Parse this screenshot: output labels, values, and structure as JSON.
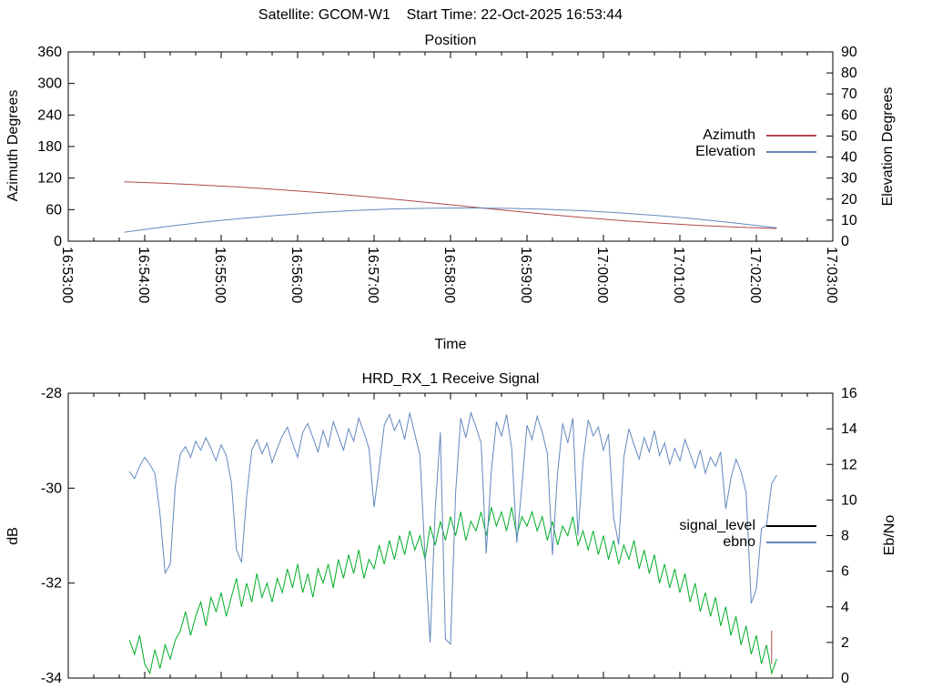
{
  "header": {
    "title": "Satellite: GCOM-W1    Start Time: 22-Oct-2025 16:53:44"
  },
  "colors": {
    "azimuth_red": "#b2484a",
    "elevation_blue": "#6289bd",
    "signal_green": "#00ad26",
    "legend_black": "#000000",
    "axis_black": "#000000",
    "background": "#ffffff"
  },
  "chart_data": [
    {
      "type": "line",
      "title": "Position",
      "xlabel": "Time",
      "x_axis": {
        "tick_labels": [
          "16:53:00",
          "16:54:00",
          "16:55:00",
          "16:56:00",
          "16:57:00",
          "16:58:00",
          "16:59:00",
          "17:00:00",
          "17:01:00",
          "17:02:00",
          "17:03:00"
        ],
        "range_seconds": [
          0,
          600
        ],
        "minor_tick_seconds": 20
      },
      "y_left": {
        "label": "Azimuth Degrees",
        "min": 0,
        "max": 360,
        "step": 60
      },
      "y_right": {
        "label": "Elevation Degrees",
        "min": 0,
        "max": 90,
        "step": 10
      },
      "legend": {
        "position": "inside-top-right",
        "entries": [
          {
            "label": "Azimuth",
            "color": "#b2484a"
          },
          {
            "label": "Elevation",
            "color": "#6289bd"
          }
        ]
      },
      "series": [
        {
          "name": "Azimuth",
          "axis": "left",
          "color": "#b2484a",
          "t": [
            44,
            74,
            104,
            134,
            164,
            194,
            224,
            254,
            284,
            314,
            344,
            374,
            404,
            434,
            464,
            494,
            524,
            556
          ],
          "values": [
            112.8,
            110.2,
            106.8,
            102.9,
            98.3,
            93.0,
            87.0,
            80.3,
            73.2,
            65.8,
            58.4,
            51.4,
            45.0,
            39.2,
            34.4,
            30.2,
            26.9,
            24.1
          ]
        },
        {
          "name": "Elevation",
          "axis": "right",
          "color": "#6289bd",
          "t": [
            44,
            74,
            104,
            134,
            164,
            194,
            224,
            254,
            284,
            314,
            344,
            374,
            404,
            434,
            464,
            494,
            524,
            556
          ],
          "values": [
            4.3,
            6.7,
            8.9,
            10.7,
            12.3,
            13.6,
            14.6,
            15.3,
            15.7,
            15.8,
            15.6,
            15.2,
            14.5,
            13.4,
            12.1,
            10.5,
            8.6,
            6.3
          ]
        }
      ]
    },
    {
      "type": "line",
      "title": "HRD_RX_1 Receive Signal",
      "xlabel": "",
      "x_axis": {
        "tick_labels": [],
        "range_seconds": [
          0,
          600
        ],
        "minor_tick_seconds": 20
      },
      "y_left": {
        "label": "dB",
        "min": -34,
        "max": -28,
        "step": 2
      },
      "y_right": {
        "label": "Eb/No",
        "min": 0,
        "max": 16,
        "step": 2
      },
      "legend": {
        "position": "inside-right",
        "entries": [
          {
            "label": "signal_level",
            "color": "#000000"
          },
          {
            "label": "ebno",
            "color": "#6289bd"
          }
        ]
      },
      "series": [
        {
          "name": "signal_level",
          "axis": "left",
          "color": "#00ad26",
          "t0": 48,
          "dt": 4,
          "values": [
            -33.2,
            -33.5,
            -33.1,
            -33.7,
            -33.9,
            -33.4,
            -33.8,
            -33.3,
            -33.6,
            -33.2,
            -33.0,
            -32.6,
            -33.1,
            -32.7,
            -32.4,
            -32.9,
            -32.3,
            -32.6,
            -32.2,
            -32.7,
            -32.3,
            -31.9,
            -32.5,
            -32.0,
            -32.4,
            -31.8,
            -32.3,
            -32.0,
            -32.4,
            -31.9,
            -32.2,
            -31.7,
            -32.1,
            -31.6,
            -32.2,
            -31.8,
            -32.3,
            -31.7,
            -32.0,
            -31.6,
            -32.1,
            -31.5,
            -31.9,
            -31.4,
            -31.8,
            -31.3,
            -31.9,
            -31.5,
            -31.7,
            -31.2,
            -31.6,
            -31.1,
            -31.5,
            -31.0,
            -31.4,
            -30.9,
            -31.3,
            -31.0,
            -31.5,
            -30.8,
            -31.2,
            -30.7,
            -31.1,
            -30.6,
            -31.0,
            -30.5,
            -31.1,
            -30.7,
            -30.9,
            -30.5,
            -31.0,
            -30.4,
            -30.8,
            -30.5,
            -30.9,
            -30.4,
            -31.0,
            -30.6,
            -30.8,
            -30.5,
            -30.9,
            -30.6,
            -31.1,
            -30.7,
            -31.2,
            -30.8,
            -31.0,
            -30.6,
            -31.2,
            -30.9,
            -31.3,
            -30.9,
            -31.4,
            -31.0,
            -31.5,
            -31.1,
            -31.6,
            -31.2,
            -31.5,
            -31.1,
            -31.7,
            -31.3,
            -31.8,
            -31.4,
            -32.0,
            -31.6,
            -32.1,
            -31.7,
            -32.2,
            -31.8,
            -32.4,
            -32.0,
            -32.6,
            -32.2,
            -32.7,
            -32.3,
            -32.9,
            -32.5,
            -33.1,
            -32.7,
            -33.3,
            -32.9,
            -33.5,
            -33.1,
            -33.7,
            -33.3,
            -33.9,
            -33.6
          ]
        },
        {
          "name": "ebno",
          "axis": "right",
          "color": "#6289bd",
          "t0": 48,
          "dt": 4,
          "values": [
            11.6,
            11.2,
            11.9,
            12.4,
            12.0,
            11.5,
            9.2,
            5.9,
            6.4,
            10.8,
            12.6,
            13.0,
            12.4,
            13.3,
            12.8,
            13.5,
            12.9,
            12.2,
            13.1,
            12.5,
            11.0,
            7.2,
            6.5,
            10.2,
            12.8,
            13.4,
            12.6,
            13.2,
            12.1,
            12.9,
            13.6,
            14.1,
            13.2,
            12.4,
            13.8,
            14.3,
            13.5,
            12.7,
            13.9,
            13.0,
            14.4,
            13.6,
            12.8,
            14.0,
            13.3,
            14.6,
            13.8,
            12.9,
            9.6,
            11.8,
            14.2,
            14.8,
            13.9,
            14.5,
            13.4,
            14.9,
            13.7,
            12.5,
            6.8,
            2.0,
            9.5,
            13.8,
            2.2,
            1.9,
            10.4,
            14.6,
            13.5,
            14.9,
            14.1,
            13.2,
            7.0,
            11.6,
            14.4,
            13.6,
            14.8,
            12.9,
            7.6,
            10.8,
            14.2,
            13.4,
            14.7,
            13.8,
            12.6,
            6.9,
            11.5,
            14.3,
            13.2,
            14.6,
            8.0,
            12.2,
            14.5,
            13.6,
            14.1,
            12.8,
            13.7,
            9.0,
            7.5,
            12.4,
            14.0,
            13.1,
            12.3,
            13.5,
            12.7,
            13.9,
            12.5,
            13.2,
            12.0,
            12.9,
            12.2,
            13.4,
            12.6,
            11.8,
            12.8,
            11.5,
            12.4,
            11.9,
            12.7,
            9.5,
            11.2,
            12.3,
            11.6,
            10.4,
            4.2,
            5.0,
            8.4,
            8.6,
            10.9,
            11.4
          ]
        }
      ],
      "annotations": [
        {
          "type": "vertical-segment",
          "color": "#b2484a",
          "axis": "left",
          "t": 552,
          "v1": -33.0,
          "v2": -33.7
        }
      ]
    }
  ]
}
